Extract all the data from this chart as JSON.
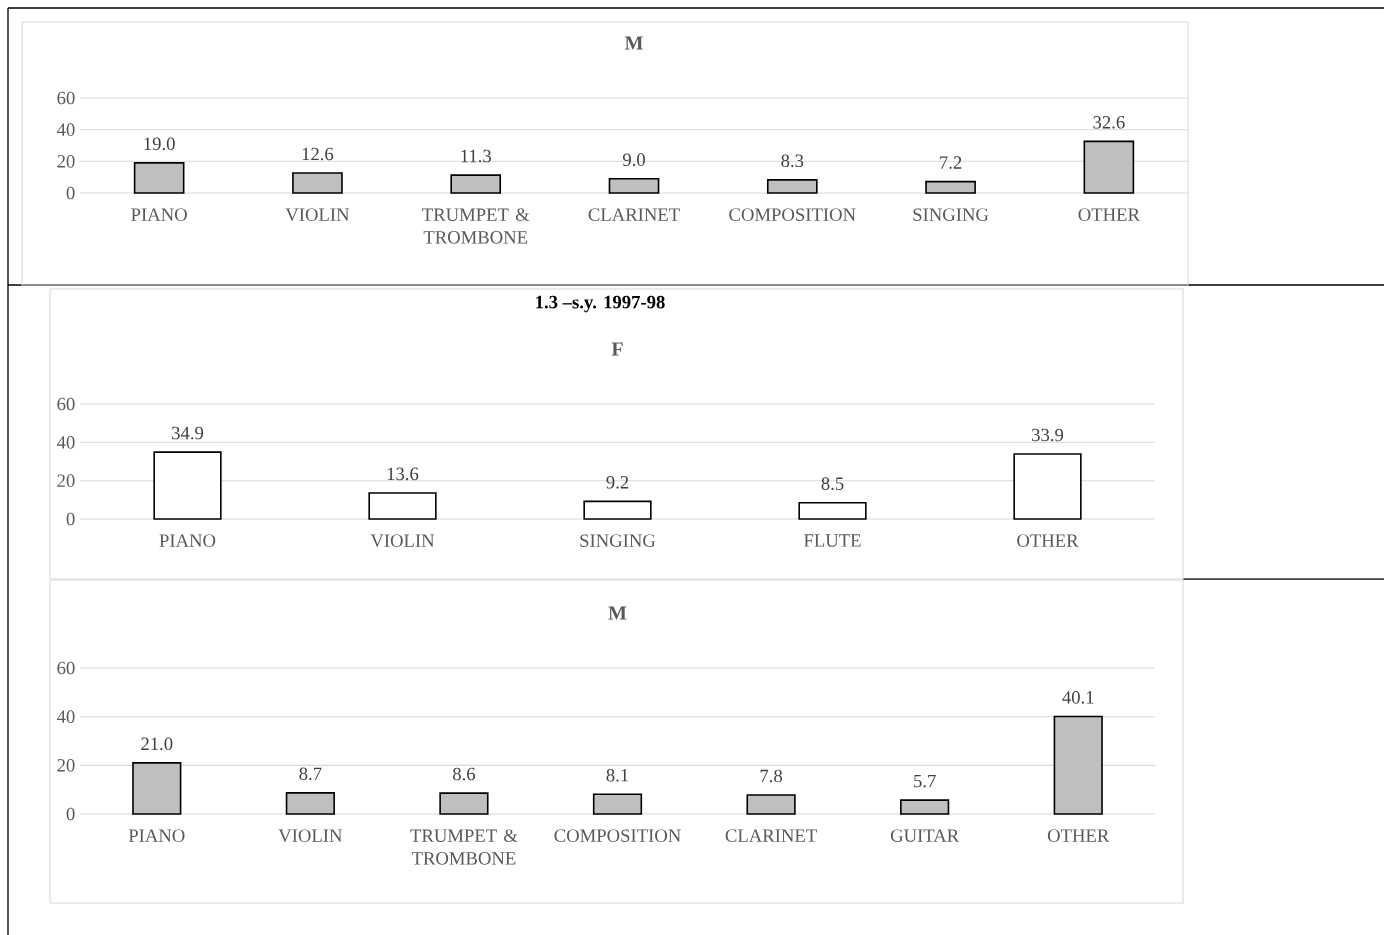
{
  "chart_data": [
    {
      "type": "bar",
      "title": "M",
      "categories": [
        "PIANO",
        "VIOLIN",
        "TRUMPET & TROMBONE",
        "CLARINET",
        "COMPOSITION",
        "SINGING",
        "OTHER"
      ],
      "values": [
        19.0,
        12.6,
        11.3,
        9.0,
        8.3,
        7.2,
        32.6
      ],
      "value_labels": [
        "19.0",
        "12.6",
        "11.3",
        "9.0",
        "8.3",
        "7.2",
        "32.6"
      ],
      "color": "#bfbfbf",
      "ylim": [
        0,
        60
      ],
      "yticks": [
        0,
        20,
        40,
        60
      ],
      "grid": "y"
    },
    {
      "type": "bar",
      "title": "F",
      "annotations": [
        "1.3 –s.y. 1997-98"
      ],
      "categories": [
        "PIANO",
        "VIOLIN",
        "SINGING",
        "FLUTE",
        "OTHER"
      ],
      "values": [
        34.9,
        13.6,
        9.2,
        8.5,
        33.9
      ],
      "value_labels": [
        "34.9",
        "13.6",
        "9.2",
        "8.5",
        "33.9"
      ],
      "color": "#ffffff",
      "ylim": [
        0,
        60
      ],
      "yticks": [
        0,
        20,
        40,
        60
      ],
      "grid": "y"
    },
    {
      "type": "bar",
      "title": "M",
      "categories": [
        "PIANO",
        "VIOLIN",
        "TRUMPET & TROMBONE",
        "COMPOSITION",
        "CLARINET",
        "GUITAR",
        "OTHER"
      ],
      "values": [
        21.0,
        8.7,
        8.6,
        8.1,
        7.8,
        5.7,
        40.1
      ],
      "value_labels": [
        "21.0",
        "8.7",
        "8.6",
        "8.1",
        "7.8",
        "5.7",
        "40.1"
      ],
      "color": "#bfbfbf",
      "ylim": [
        0,
        60
      ],
      "yticks": [
        0,
        20,
        40,
        60
      ],
      "grid": "y"
    }
  ]
}
